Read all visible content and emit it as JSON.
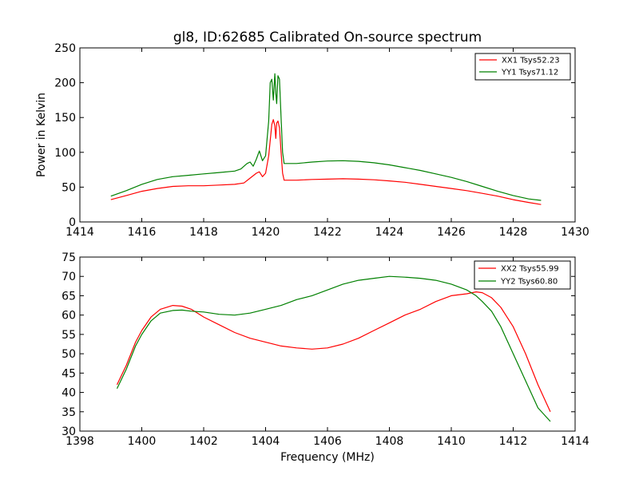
{
  "chart_data": [
    {
      "type": "line",
      "title": "gl8, ID:62685 Calibrated On-source spectrum",
      "xlabel": "",
      "ylabel": "Power in Kelvin",
      "xlim": [
        1414,
        1430
      ],
      "ylim": [
        0,
        250
      ],
      "xticks": [
        1414,
        1416,
        1418,
        1420,
        1422,
        1424,
        1426,
        1428,
        1430
      ],
      "yticks": [
        0,
        50,
        100,
        150,
        200,
        250
      ],
      "legend_position": "top-right",
      "series": [
        {
          "name": "XX1 Tsys52.23",
          "color": "#ff0000",
          "x": [
            1415.0,
            1415.5,
            1416.0,
            1416.5,
            1417.0,
            1417.5,
            1418.0,
            1418.5,
            1419.0,
            1419.3,
            1419.5,
            1419.7,
            1419.8,
            1419.9,
            1420.0,
            1420.1,
            1420.2,
            1420.25,
            1420.3,
            1420.33,
            1420.36,
            1420.4,
            1420.45,
            1420.5,
            1420.55,
            1420.6,
            1421.0,
            1421.5,
            1422.0,
            1422.5,
            1423.0,
            1423.5,
            1424.0,
            1424.5,
            1425.0,
            1425.5,
            1426.0,
            1426.5,
            1427.0,
            1427.5,
            1428.0,
            1428.5,
            1428.9
          ],
          "values": [
            32,
            38,
            44,
            48,
            51,
            52,
            52,
            53,
            54,
            56,
            63,
            70,
            72,
            65,
            70,
            95,
            140,
            147,
            138,
            120,
            142,
            145,
            135,
            100,
            70,
            60,
            60,
            61,
            61.5,
            62,
            61.5,
            60.5,
            59,
            57,
            54,
            51,
            48,
            45,
            41,
            37,
            32,
            28,
            25
          ]
        },
        {
          "name": "YY1 Tsys71.12",
          "color": "#008000",
          "x": [
            1415.0,
            1415.5,
            1416.0,
            1416.5,
            1417.0,
            1417.5,
            1418.0,
            1418.5,
            1419.0,
            1419.2,
            1419.4,
            1419.5,
            1419.6,
            1419.7,
            1419.8,
            1419.9,
            1420.0,
            1420.1,
            1420.15,
            1420.2,
            1420.25,
            1420.3,
            1420.33,
            1420.36,
            1420.4,
            1420.45,
            1420.5,
            1420.55,
            1420.6,
            1421.0,
            1421.5,
            1422.0,
            1422.5,
            1423.0,
            1423.5,
            1424.0,
            1424.5,
            1425.0,
            1425.5,
            1426.0,
            1426.5,
            1427.0,
            1427.5,
            1428.0,
            1428.5,
            1428.9
          ],
          "values": [
            37,
            45,
            54,
            61,
            65,
            67,
            69,
            71,
            73,
            76,
            84,
            86,
            80,
            90,
            102,
            88,
            95,
            145,
            200,
            205,
            175,
            213,
            185,
            170,
            210,
            205,
            150,
            100,
            84,
            84,
            86,
            87.5,
            88,
            87,
            85,
            82,
            78,
            74,
            69,
            64,
            58,
            51,
            44,
            38,
            33,
            31
          ]
        }
      ]
    },
    {
      "type": "line",
      "title": "",
      "xlabel": "Frequency (MHz)",
      "ylabel": "",
      "xlim": [
        1398,
        1414
      ],
      "ylim": [
        30,
        75
      ],
      "xticks": [
        1398,
        1400,
        1402,
        1404,
        1406,
        1408,
        1410,
        1412,
        1414
      ],
      "yticks": [
        30,
        35,
        40,
        45,
        50,
        55,
        60,
        65,
        70,
        75
      ],
      "legend_position": "top-right",
      "series": [
        {
          "name": "XX2 Tsys55.99",
          "color": "#ff0000",
          "x": [
            1399.2,
            1399.5,
            1399.8,
            1400.0,
            1400.3,
            1400.6,
            1401.0,
            1401.3,
            1401.6,
            1402.0,
            1402.5,
            1403.0,
            1403.5,
            1404.0,
            1404.5,
            1405.0,
            1405.5,
            1406.0,
            1406.5,
            1407.0,
            1407.5,
            1408.0,
            1408.5,
            1409.0,
            1409.5,
            1410.0,
            1410.5,
            1410.8,
            1411.0,
            1411.3,
            1411.6,
            1412.0,
            1412.4,
            1412.8,
            1413.2
          ],
          "values": [
            42,
            47,
            53,
            56,
            59.5,
            61.5,
            62.5,
            62.3,
            61.5,
            59.5,
            57.5,
            55.5,
            54,
            53,
            52,
            51.5,
            51.2,
            51.5,
            52.5,
            54,
            56,
            58,
            60,
            61.5,
            63.5,
            65,
            65.5,
            66,
            65.8,
            64.5,
            62,
            57,
            50,
            42,
            35
          ]
        },
        {
          "name": "YY2 Tsys60.80",
          "color": "#008000",
          "x": [
            1399.2,
            1399.5,
            1399.8,
            1400.0,
            1400.3,
            1400.6,
            1401.0,
            1401.3,
            1401.6,
            1402.0,
            1402.5,
            1403.0,
            1403.5,
            1404.0,
            1404.5,
            1405.0,
            1405.5,
            1406.0,
            1406.5,
            1407.0,
            1407.5,
            1408.0,
            1408.5,
            1409.0,
            1409.5,
            1410.0,
            1410.5,
            1410.8,
            1411.0,
            1411.3,
            1411.6,
            1412.0,
            1412.4,
            1412.8,
            1413.2
          ],
          "values": [
            41,
            46,
            52,
            55,
            58.5,
            60.5,
            61.2,
            61.3,
            61,
            60.8,
            60.2,
            60,
            60.5,
            61.5,
            62.5,
            64,
            65,
            66.5,
            68,
            69,
            69.5,
            70,
            69.8,
            69.5,
            69,
            68,
            66.5,
            65,
            63.5,
            61,
            57,
            50,
            43,
            36,
            32.5
          ]
        }
      ]
    }
  ]
}
